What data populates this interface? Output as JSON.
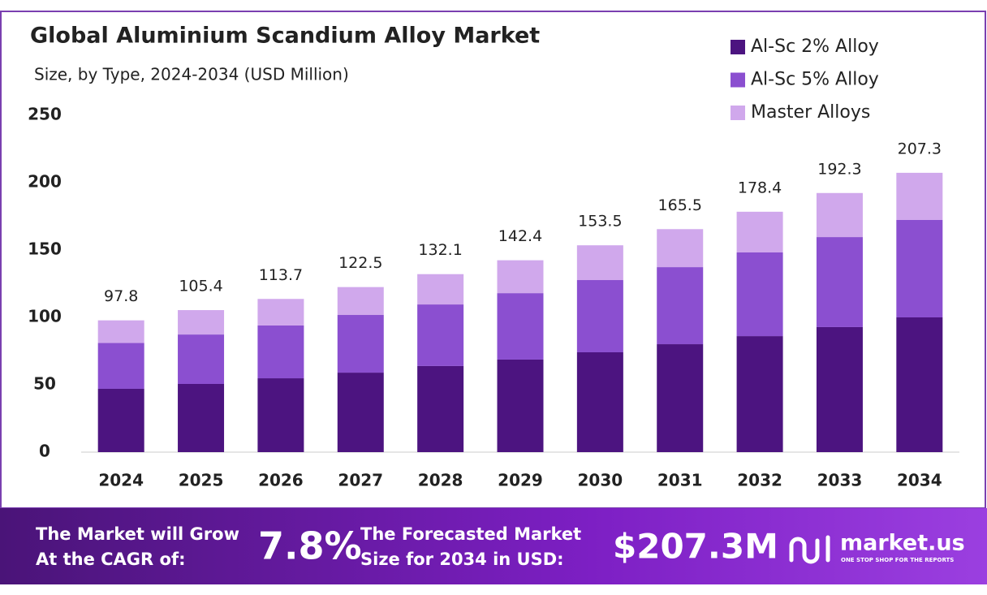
{
  "chart_data": {
    "type": "stacked_bar",
    "title": "Global Aluminium  Scandium Alloy Market",
    "subtitle": "Size, by Type, 2024-2034 (USD Million)",
    "categories": [
      "2024",
      "2025",
      "2026",
      "2027",
      "2028",
      "2029",
      "2030",
      "2031",
      "2032",
      "2033",
      "2034"
    ],
    "series": [
      {
        "name": "Al-Sc 2% Alloy",
        "color": "#4c1480",
        "values": [
          47,
          50.6,
          54.8,
          59,
          63.9,
          68.7,
          74.1,
          80.1,
          86.1,
          92.8,
          100
        ]
      },
      {
        "name": "Al-Sc 5% Alloy",
        "color": "#8b4fd0",
        "values": [
          34,
          36.7,
          39.2,
          42.8,
          45.7,
          49.3,
          53.6,
          57.2,
          62.1,
          66.8,
          72.3
        ]
      },
      {
        "name": "Master Alloys",
        "color": "#d0a8ec",
        "values": [
          16.8,
          18.1,
          19.7,
          20.7,
          22.5,
          24.4,
          25.8,
          28.2,
          30.2,
          32.7,
          35
        ]
      }
    ],
    "totals": [
      97.8,
      105.4,
      113.7,
      122.5,
      132.1,
      142.4,
      153.5,
      165.5,
      178.4,
      192.3,
      207.3
    ],
    "ylim": [
      0,
      250
    ],
    "yticks": [
      0,
      50,
      100,
      150,
      200,
      250
    ],
    "grid": false,
    "legend": "top-right"
  },
  "footer": {
    "grow_line1": "The Market will Grow",
    "grow_line2": "At the CAGR of:",
    "cagr": "7.8%",
    "forecast_line1": "The Forecasted Market",
    "forecast_line2": "Size for 2034 in USD:",
    "forecast_value": "$207.3M",
    "brand": "market.us",
    "tagline": "ONE STOP SHOP FOR THE REPORTS"
  }
}
